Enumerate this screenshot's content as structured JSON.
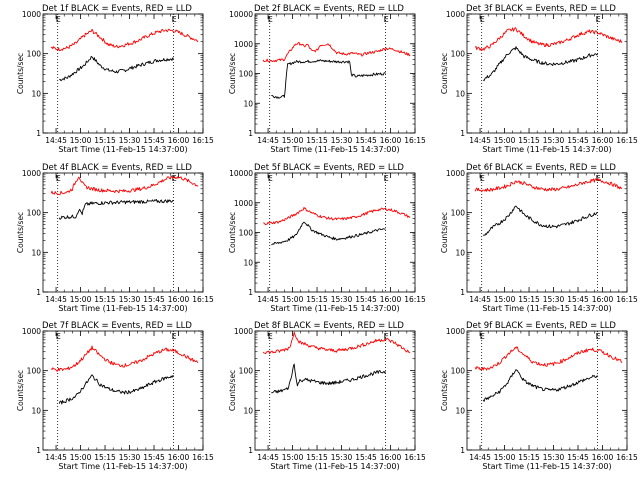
{
  "figure": {
    "xlabel": "Start Time (11-Feb-15 14:37:00)",
    "ylabel": "Counts/sec",
    "y_tick_labels": [
      "1",
      "10",
      "100",
      "1000"
    ],
    "x_tick_labels": [
      "14:45",
      "15:00",
      "15:15",
      "15:30",
      "15:45",
      "16:00",
      "16:15"
    ],
    "marker_labels": [
      "E",
      "E"
    ],
    "colors": {
      "events": "#000000",
      "lld": "#ff0000",
      "markers": "#000000"
    }
  },
  "chart_data": [
    {
      "type": "line",
      "title": "Det 1f BLACK = Events, RED = LLD",
      "xlabel": "Start Time (11-Feb-15 14:37:00)",
      "ylabel": "Counts/sec",
      "x_unit": "minutes after 14:37",
      "y_scale": "log",
      "ylim": [
        1,
        1000
      ],
      "xlim": [
        0,
        98
      ],
      "markers_x": [
        9,
        80
      ],
      "series": [
        {
          "name": "Events",
          "color": "#000000",
          "x": [
            10,
            15,
            20,
            25,
            30,
            35,
            40,
            45,
            50,
            55,
            60,
            65,
            70,
            75,
            80
          ],
          "y": [
            22,
            25,
            35,
            50,
            85,
            50,
            38,
            35,
            38,
            45,
            52,
            60,
            68,
            72,
            75
          ]
        },
        {
          "name": "LLD",
          "color": "#ff0000",
          "x": [
            5,
            10,
            15,
            20,
            25,
            30,
            35,
            40,
            45,
            50,
            55,
            60,
            65,
            70,
            75,
            80,
            85,
            90,
            95
          ],
          "y": [
            140,
            130,
            140,
            180,
            280,
            380,
            260,
            170,
            150,
            165,
            190,
            230,
            290,
            350,
            390,
            380,
            320,
            260,
            210
          ]
        }
      ]
    },
    {
      "type": "line",
      "title": "Det 2f BLACK = Events, RED = LLD",
      "xlabel": "Start Time (11-Feb-15 14:37:00)",
      "ylabel": "Counts/sec",
      "x_unit": "minutes after 14:37",
      "y_scale": "log",
      "ylim": [
        1,
        10000
      ],
      "xlim": [
        0,
        98
      ],
      "markers_x": [
        9,
        80
      ],
      "series": [
        {
          "name": "Events",
          "color": "#000000",
          "x": [
            10,
            14,
            18,
            19,
            20,
            25,
            30,
            35,
            40,
            45,
            50,
            55,
            58,
            59,
            62,
            66,
            70,
            75,
            80
          ],
          "y": [
            18,
            16,
            17,
            60,
            200,
            250,
            250,
            260,
            270,
            260,
            250,
            250,
            250,
            90,
            80,
            85,
            90,
            95,
            100
          ]
        },
        {
          "name": "LLD",
          "color": "#ff0000",
          "x": [
            5,
            10,
            15,
            18,
            20,
            25,
            28,
            30,
            32,
            35,
            38,
            40,
            45,
            50,
            55,
            60,
            65,
            70,
            75,
            80,
            85,
            90,
            95
          ],
          "y": [
            280,
            270,
            280,
            300,
            450,
            1000,
            1000,
            800,
            950,
            550,
            600,
            900,
            1000,
            500,
            450,
            480,
            420,
            500,
            550,
            700,
            650,
            520,
            420
          ]
        }
      ]
    },
    {
      "type": "line",
      "title": "Det 3f BLACK = Events, RED = LLD",
      "xlabel": "Start Time (11-Feb-15 14:37:00)",
      "ylabel": "Counts/sec",
      "x_unit": "minutes after 14:37",
      "y_scale": "log",
      "ylim": [
        1,
        1000
      ],
      "xlim": [
        0,
        98
      ],
      "markers_x": [
        9,
        80
      ],
      "series": [
        {
          "name": "Events",
          "color": "#000000",
          "x": [
            10,
            15,
            20,
            25,
            30,
            35,
            40,
            45,
            50,
            55,
            60,
            65,
            70,
            75,
            80
          ],
          "y": [
            22,
            30,
            55,
            100,
            140,
            85,
            70,
            60,
            55,
            55,
            60,
            65,
            75,
            90,
            100
          ]
        },
        {
          "name": "LLD",
          "color": "#ff0000",
          "x": [
            5,
            10,
            15,
            20,
            25,
            30,
            35,
            40,
            45,
            50,
            55,
            60,
            65,
            70,
            75,
            80,
            85,
            90,
            95
          ],
          "y": [
            140,
            130,
            160,
            250,
            380,
            420,
            280,
            200,
            170,
            165,
            180,
            210,
            260,
            320,
            360,
            340,
            280,
            230,
            200
          ]
        }
      ]
    },
    {
      "type": "line",
      "title": "Det 4f BLACK = Events, RED = LLD",
      "xlabel": "Start Time (11-Feb-15 14:37:00)",
      "ylabel": "Counts/sec",
      "x_unit": "minutes after 14:37",
      "y_scale": "log",
      "ylim": [
        1,
        1000
      ],
      "xlim": [
        0,
        98
      ],
      "markers_x": [
        9,
        80
      ],
      "series": [
        {
          "name": "Events",
          "color": "#000000",
          "x": [
            10,
            15,
            20,
            22,
            24,
            26,
            30,
            35,
            40,
            45,
            50,
            55,
            60,
            65,
            70,
            75,
            80
          ],
          "y": [
            75,
            78,
            80,
            120,
            95,
            160,
            170,
            175,
            180,
            180,
            185,
            185,
            190,
            190,
            195,
            195,
            200
          ]
        },
        {
          "name": "LLD",
          "color": "#ff0000",
          "x": [
            5,
            10,
            15,
            18,
            20,
            22,
            24,
            26,
            30,
            35,
            40,
            45,
            50,
            55,
            60,
            65,
            70,
            75,
            80,
            85,
            90,
            95
          ],
          "y": [
            320,
            310,
            330,
            400,
            600,
            850,
            550,
            450,
            400,
            370,
            360,
            350,
            350,
            370,
            400,
            450,
            550,
            700,
            800,
            750,
            600,
            480
          ]
        }
      ]
    },
    {
      "type": "line",
      "title": "Det 5f BLACK = Events, RED = LLD",
      "xlabel": "Start Time (11-Feb-15 14:37:00)",
      "ylabel": "Counts/sec",
      "x_unit": "minutes after 14:37",
      "y_scale": "log",
      "ylim": [
        1,
        10000
      ],
      "xlim": [
        0,
        98
      ],
      "markers_x": [
        9,
        80
      ],
      "series": [
        {
          "name": "Events",
          "color": "#000000",
          "x": [
            10,
            15,
            20,
            25,
            30,
            35,
            40,
            45,
            50,
            55,
            60,
            65,
            70,
            75,
            80
          ],
          "y": [
            40,
            45,
            55,
            80,
            240,
            120,
            90,
            70,
            60,
            65,
            75,
            85,
            100,
            120,
            130
          ]
        },
        {
          "name": "LLD",
          "color": "#ff0000",
          "x": [
            5,
            10,
            15,
            20,
            25,
            30,
            35,
            40,
            45,
            50,
            55,
            60,
            65,
            70,
            75,
            80,
            85,
            90,
            95
          ],
          "y": [
            200,
            210,
            230,
            300,
            420,
            650,
            450,
            350,
            300,
            280,
            290,
            320,
            380,
            480,
            580,
            620,
            550,
            430,
            330
          ]
        }
      ]
    },
    {
      "type": "line",
      "title": "Det 6f BLACK = Events, RED = LLD",
      "xlabel": "Start Time (11-Feb-15 14:37:00)",
      "ylabel": "Counts/sec",
      "x_unit": "minutes after 14:37",
      "y_scale": "log",
      "ylim": [
        1,
        1000
      ],
      "xlim": [
        0,
        98
      ],
      "markers_x": [
        9,
        80
      ],
      "series": [
        {
          "name": "Events",
          "color": "#000000",
          "x": [
            10,
            15,
            20,
            25,
            30,
            35,
            40,
            45,
            50,
            55,
            60,
            65,
            70,
            75,
            80
          ],
          "y": [
            25,
            40,
            55,
            80,
            150,
            90,
            65,
            50,
            45,
            45,
            50,
            58,
            70,
            85,
            100
          ]
        },
        {
          "name": "LLD",
          "color": "#ff0000",
          "x": [
            5,
            10,
            15,
            20,
            25,
            30,
            35,
            40,
            45,
            50,
            55,
            60,
            65,
            70,
            75,
            80,
            85,
            90,
            95
          ],
          "y": [
            380,
            370,
            380,
            420,
            480,
            620,
            550,
            450,
            400,
            380,
            390,
            420,
            470,
            550,
            620,
            660,
            600,
            500,
            400
          ]
        }
      ]
    },
    {
      "type": "line",
      "title": "Det 7f BLACK = Events, RED = LLD",
      "xlabel": "Start Time (11-Feb-15 14:37:00)",
      "ylabel": "Counts/sec",
      "x_unit": "minutes after 14:37",
      "y_scale": "log",
      "ylim": [
        1,
        1000
      ],
      "xlim": [
        0,
        98
      ],
      "markers_x": [
        9,
        80
      ],
      "series": [
        {
          "name": "Events",
          "color": "#000000",
          "x": [
            10,
            15,
            20,
            25,
            30,
            35,
            40,
            45,
            50,
            55,
            60,
            65,
            70,
            75,
            80
          ],
          "y": [
            15,
            18,
            22,
            40,
            75,
            45,
            35,
            30,
            28,
            30,
            35,
            45,
            55,
            65,
            75
          ]
        },
        {
          "name": "LLD",
          "color": "#ff0000",
          "x": [
            5,
            10,
            15,
            20,
            25,
            30,
            35,
            40,
            45,
            50,
            55,
            60,
            65,
            70,
            75,
            80,
            85,
            90,
            95
          ],
          "y": [
            110,
            105,
            110,
            140,
            220,
            380,
            240,
            170,
            140,
            135,
            150,
            180,
            230,
            290,
            340,
            320,
            260,
            200,
            160
          ]
        }
      ]
    },
    {
      "type": "line",
      "title": "Det 8f BLACK = Events, RED = LLD",
      "xlabel": "Start Time (11-Feb-15 14:37:00)",
      "ylabel": "Counts/sec",
      "x_unit": "minutes after 14:37",
      "y_scale": "log",
      "ylim": [
        1,
        1000
      ],
      "xlim": [
        0,
        98
      ],
      "markers_x": [
        9,
        80
      ],
      "series": [
        {
          "name": "Events",
          "color": "#000000",
          "x": [
            10,
            15,
            20,
            22,
            23,
            24,
            25,
            26,
            27,
            30,
            35,
            40,
            45,
            50,
            55,
            60,
            65,
            70,
            75,
            80
          ],
          "y": [
            28,
            30,
            35,
            60,
            100,
            160,
            70,
            40,
            55,
            60,
            55,
            50,
            48,
            50,
            55,
            60,
            70,
            80,
            90,
            95
          ]
        },
        {
          "name": "LLD",
          "color": "#ff0000",
          "x": [
            5,
            10,
            15,
            20,
            22,
            24,
            26,
            28,
            30,
            35,
            40,
            45,
            50,
            55,
            60,
            65,
            70,
            75,
            80,
            85,
            90,
            95
          ],
          "y": [
            300,
            290,
            310,
            360,
            450,
            1000,
            600,
            500,
            480,
            400,
            360,
            330,
            320,
            340,
            380,
            430,
            500,
            580,
            620,
            520,
            380,
            280
          ]
        }
      ]
    },
    {
      "type": "line",
      "title": "Det 9f BLACK = Events, RED = LLD",
      "xlabel": "Start Time (11-Feb-15 14:37:00)",
      "ylabel": "Counts/sec",
      "x_unit": "minutes after 14:37",
      "y_scale": "log",
      "ylim": [
        1,
        1000
      ],
      "xlim": [
        0,
        98
      ],
      "markers_x": [
        9,
        80
      ],
      "series": [
        {
          "name": "Events",
          "color": "#000000",
          "x": [
            10,
            15,
            20,
            25,
            30,
            35,
            40,
            45,
            50,
            55,
            60,
            65,
            70,
            75,
            80
          ],
          "y": [
            18,
            22,
            30,
            50,
            110,
            55,
            42,
            35,
            32,
            33,
            38,
            45,
            55,
            65,
            75
          ]
        },
        {
          "name": "LLD",
          "color": "#ff0000",
          "x": [
            5,
            10,
            15,
            20,
            25,
            30,
            35,
            40,
            45,
            50,
            55,
            60,
            65,
            70,
            75,
            80,
            85,
            90,
            95
          ],
          "y": [
            115,
            110,
            120,
            160,
            260,
            380,
            250,
            170,
            145,
            140,
            155,
            190,
            240,
            300,
            340,
            330,
            270,
            210,
            165
          ]
        }
      ]
    }
  ]
}
